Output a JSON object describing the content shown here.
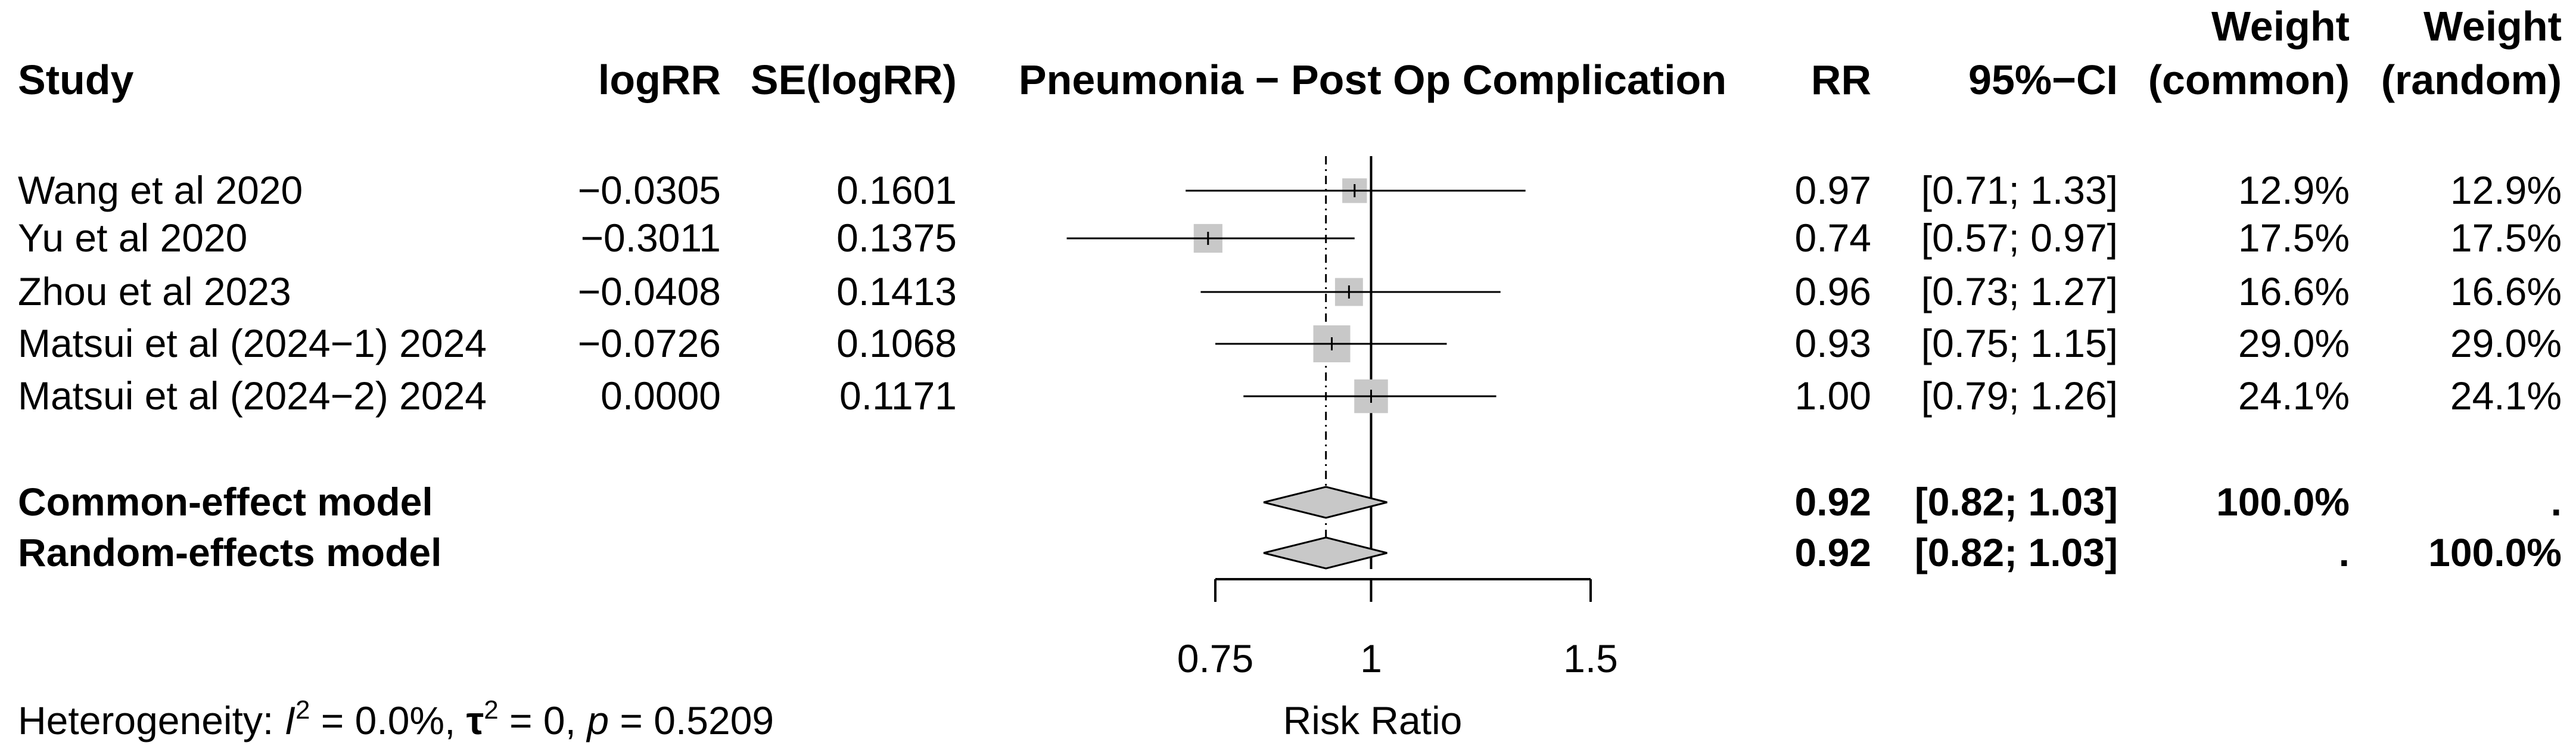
{
  "chart_data": {
    "type": "forest",
    "title": "Pneumonia − Post Op Complication",
    "xlabel": "Risk Ratio",
    "x_scale": "log",
    "xlim": [
      0.75,
      1.5
    ],
    "xticks": [
      0.75,
      1,
      1.5
    ],
    "xtick_labels": [
      "0.75",
      "1",
      "1.5"
    ],
    "reference_line": 1,
    "pooled_line": 0.92,
    "columns": {
      "study": "Study",
      "logrr": "logRR",
      "se": "SE(logRR)",
      "plot": "Pneumonia − Post Op Complication",
      "rr": "RR",
      "ci": "95%−CI",
      "weight_common_1": "Weight",
      "weight_common_2": "(common)",
      "weight_random_1": "Weight",
      "weight_random_2": "(random)"
    },
    "studies": [
      {
        "study": "Wang et al 2020",
        "logrr": "−0.0305",
        "se": "0.1601",
        "rr_text": "0.97",
        "ci_text": "[0.71; 1.33]",
        "w_common": "12.9%",
        "w_random": "12.9%",
        "rr": 0.97,
        "lower": 0.71,
        "upper": 1.33,
        "weight": 12.9
      },
      {
        "study": "Yu et al 2020",
        "logrr": "−0.3011",
        "se": "0.1375",
        "rr_text": "0.74",
        "ci_text": "[0.57; 0.97]",
        "w_common": "17.5%",
        "w_random": "17.5%",
        "rr": 0.74,
        "lower": 0.57,
        "upper": 0.97,
        "weight": 17.5
      },
      {
        "study": "Zhou et al 2023",
        "logrr": "−0.0408",
        "se": "0.1413",
        "rr_text": "0.96",
        "ci_text": "[0.73; 1.27]",
        "w_common": "16.6%",
        "w_random": "16.6%",
        "rr": 0.96,
        "lower": 0.73,
        "upper": 1.27,
        "weight": 16.6
      },
      {
        "study": "Matsui et al (2024−1) 2024",
        "logrr": "−0.0726",
        "se": "0.1068",
        "rr_text": "0.93",
        "ci_text": "[0.75; 1.15]",
        "w_common": "29.0%",
        "w_random": "29.0%",
        "rr": 0.93,
        "lower": 0.75,
        "upper": 1.15,
        "weight": 29.0
      },
      {
        "study": "Matsui et al (2024−2) 2024",
        "logrr": "0.0000",
        "se": "0.1171",
        "rr_text": "1.00",
        "ci_text": "[0.79; 1.26]",
        "w_common": "24.1%",
        "w_random": "24.1%",
        "rr": 1.0,
        "lower": 0.79,
        "upper": 1.26,
        "weight": 24.1
      }
    ],
    "models": [
      {
        "label": "Common-effect model",
        "rr_text": "0.92",
        "ci_text": "[0.82; 1.03]",
        "w_common": "100.0%",
        "w_random": ".",
        "rr": 0.92,
        "lower": 0.82,
        "upper": 1.03
      },
      {
        "label": "Random-effects model",
        "rr_text": "0.92",
        "ci_text": "[0.82; 1.03]",
        "w_common": ".",
        "w_random": "100.0%",
        "rr": 0.92,
        "lower": 0.82,
        "upper": 1.03
      }
    ],
    "heterogeneity": {
      "prefix": "Heterogeneity: ",
      "i2_symbol": "I",
      "sq": "2",
      "i2_value": " = 0.0%, ",
      "tau_symbol": "τ",
      "tau_value": " = 0, ",
      "p_symbol": "p",
      "p_value": " = 0.5209"
    },
    "colors": {
      "square": "#c8c8c8",
      "diamond": "#c8c8c8",
      "line": "#000000",
      "text": "#000000"
    }
  }
}
